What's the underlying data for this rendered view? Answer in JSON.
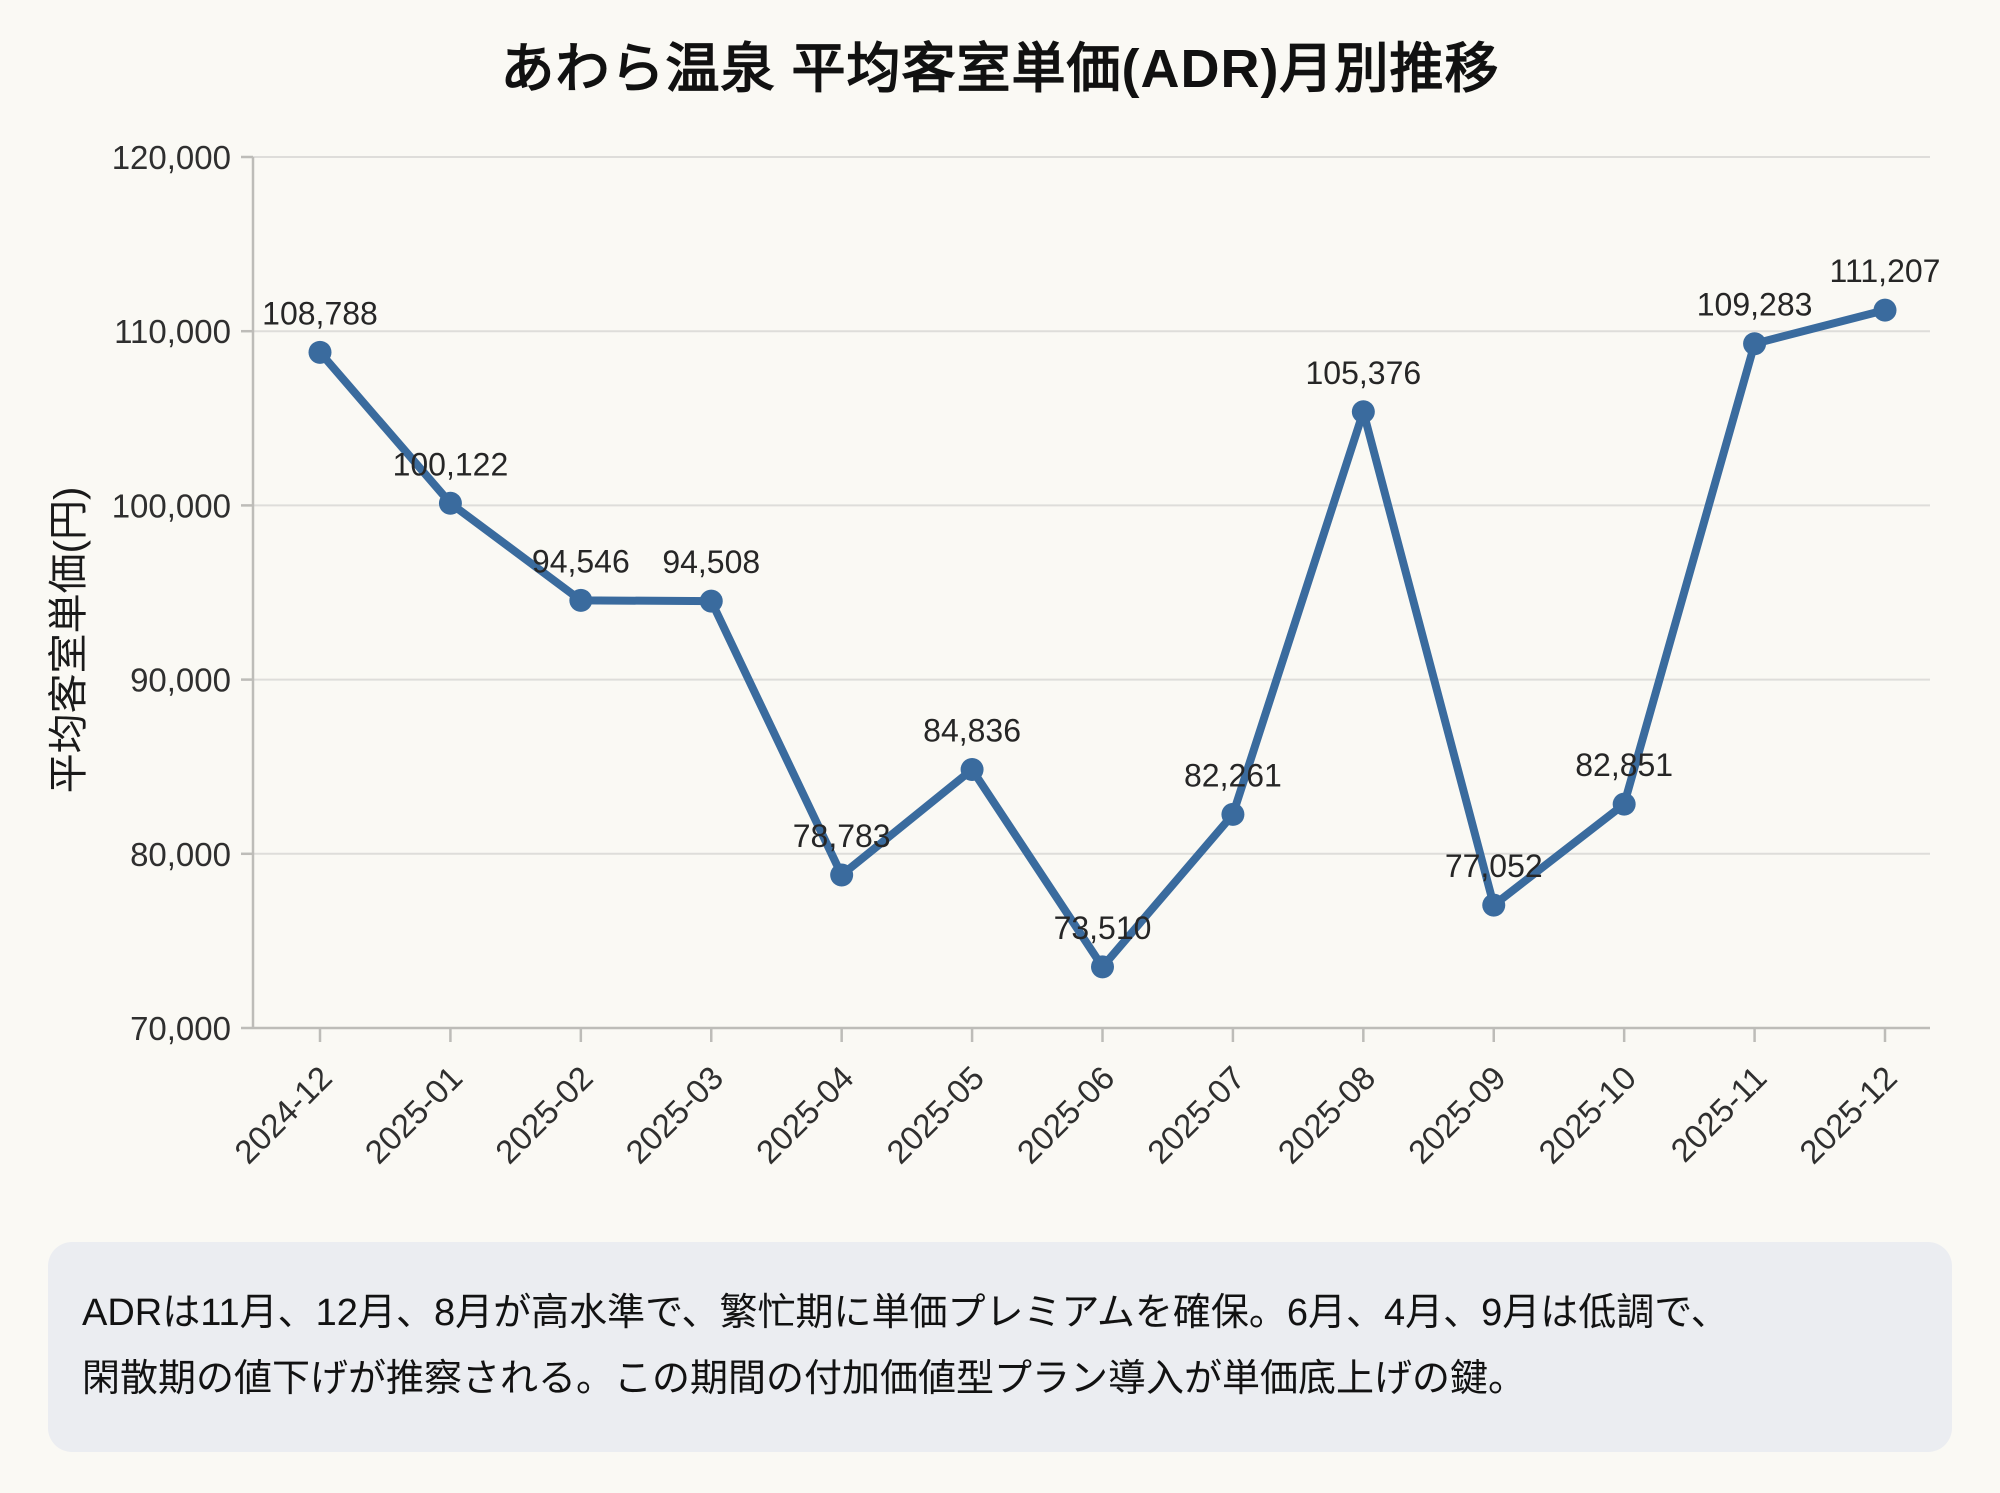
{
  "page": {
    "background": "#FAF9F4"
  },
  "chart_data": {
    "type": "line",
    "title": "あわら温泉 平均客室単価(ADR)月別推移",
    "ylabel": "平均客室単価(円)",
    "xlabel": "",
    "categories": [
      "2024-12",
      "2025-01",
      "2025-02",
      "2025-03",
      "2025-04",
      "2025-05",
      "2025-06",
      "2025-07",
      "2025-08",
      "2025-09",
      "2025-10",
      "2025-11",
      "2025-12"
    ],
    "values": [
      108788,
      100122,
      94546,
      94508,
      78783,
      84836,
      73510,
      82261,
      105376,
      77052,
      82851,
      109283,
      111207
    ],
    "value_labels": [
      "108,788",
      "100,122",
      "94,546",
      "94,508",
      "78,783",
      "84,836",
      "73,510",
      "82,261",
      "105,376",
      "77,052",
      "82,851",
      "109,283",
      "111,207"
    ],
    "ylim": [
      70000,
      120000
    ],
    "yticks": [
      70000,
      80000,
      90000,
      100000,
      110000,
      120000
    ],
    "ytick_labels": [
      "70,000",
      "80,000",
      "90,000",
      "100,000",
      "110,000",
      "120,000"
    ],
    "grid": true,
    "legend_position": "none",
    "colors": {
      "line": "#3A6B9E",
      "marker": "#3A6B9E",
      "grid": "#DEDDDA",
      "axis": "#BDBCB8",
      "label_text": "#262626",
      "tick_text": "#2F2F2F"
    }
  },
  "note": {
    "background": "#EBEDF1",
    "line1": "ADRは11月、12月、8月が高水準で、繁忙期に単価プレミアムを確保。6月、4月、9月は低調で、",
    "line2": "閑散期の値下げが推察される。この期間の付加価値型プラン導入が単価底上げの鍵。"
  }
}
